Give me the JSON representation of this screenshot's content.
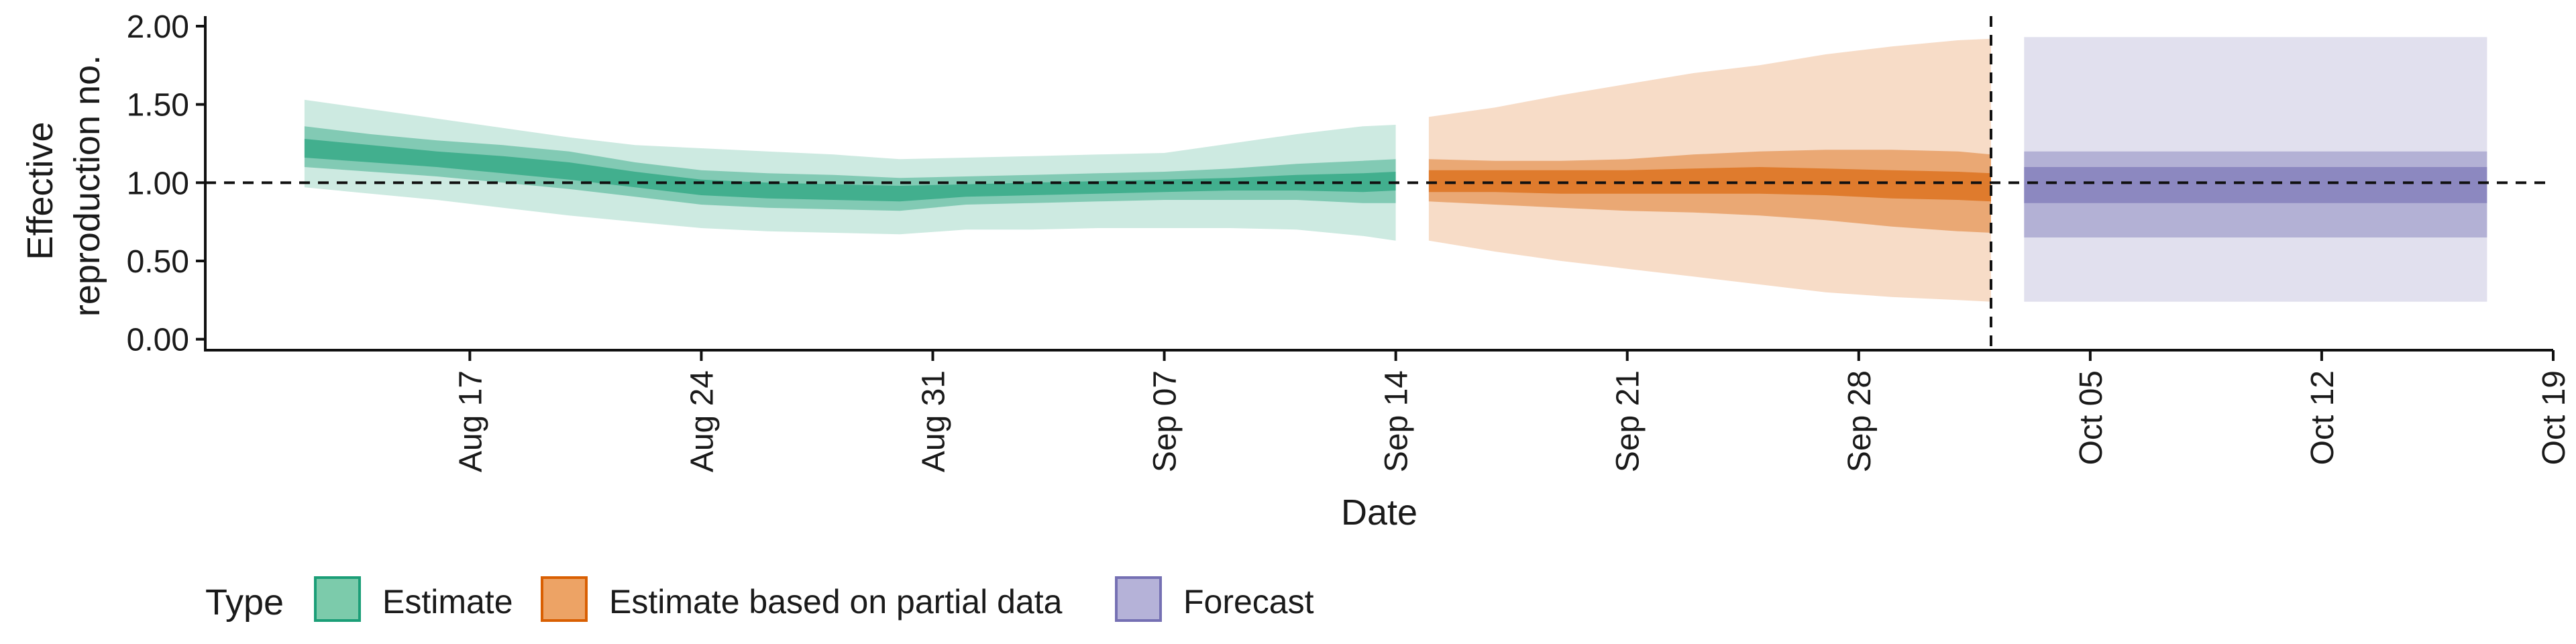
{
  "chart_data": {
    "type": "area",
    "xlabel": "Date",
    "ylabel_lines": [
      "Effective",
      "reproduction no."
    ],
    "ylim": [
      -0.07,
      2.03
    ],
    "xlim": [
      "2025-08-09",
      "2025-10-19"
    ],
    "yticks": [
      0.0,
      0.5,
      1.0,
      1.5,
      2.0
    ],
    "ytick_labels": [
      "0.00",
      "0.50",
      "1.00",
      "1.50",
      "2.00"
    ],
    "xticks": [
      "2025-08-17",
      "2025-08-24",
      "2025-08-31",
      "2025-09-07",
      "2025-09-14",
      "2025-09-21",
      "2025-09-28",
      "2025-10-05",
      "2025-10-12",
      "2025-10-19"
    ],
    "xtick_labels": [
      "Aug 17",
      "Aug 24",
      "Aug 31",
      "Sep 07",
      "Sep 14",
      "Sep 21",
      "Sep 28",
      "Oct 05",
      "Oct 12",
      "Oct 19"
    ],
    "reference_line_y": 1.0,
    "forecast_date_line": "2025-10-02",
    "grid": false,
    "legend": {
      "title": "Type",
      "position": "bottom-left",
      "items": [
        {
          "label": "Estimate",
          "fill": "#7ccbab",
          "stroke": "#1b9e77"
        },
        {
          "label": "Estimate based on partial data",
          "fill": "#eda365",
          "stroke": "#d95f02"
        },
        {
          "label": "Forecast",
          "fill": "#b5b2d8",
          "stroke": "#7570b3"
        }
      ]
    },
    "series": [
      {
        "type": "Estimate",
        "color": "#1b9e77",
        "dates": [
          "2025-08-12",
          "2025-08-14",
          "2025-08-16",
          "2025-08-18",
          "2025-08-20",
          "2025-08-22",
          "2025-08-24",
          "2025-08-26",
          "2025-08-28",
          "2025-08-30",
          "2025-09-01",
          "2025-09-03",
          "2025-09-05",
          "2025-09-07",
          "2025-09-09",
          "2025-09-11",
          "2025-09-13",
          "2025-09-14"
        ],
        "bands": [
          {
            "lower": [
              0.97,
              0.93,
              0.89,
              0.84,
              0.79,
              0.75,
              0.71,
              0.69,
              0.68,
              0.67,
              0.7,
              0.7,
              0.71,
              0.71,
              0.71,
              0.7,
              0.66,
              0.63
            ],
            "upper": [
              1.53,
              1.47,
              1.41,
              1.35,
              1.29,
              1.24,
              1.22,
              1.2,
              1.18,
              1.15,
              1.16,
              1.17,
              1.18,
              1.19,
              1.25,
              1.31,
              1.36,
              1.37
            ]
          },
          {
            "lower": [
              1.1,
              1.07,
              1.04,
              1.0,
              0.96,
              0.91,
              0.86,
              0.84,
              0.83,
              0.82,
              0.86,
              0.87,
              0.88,
              0.89,
              0.89,
              0.89,
              0.87,
              0.87
            ],
            "upper": [
              1.36,
              1.31,
              1.27,
              1.24,
              1.2,
              1.13,
              1.08,
              1.06,
              1.05,
              1.03,
              1.04,
              1.05,
              1.06,
              1.07,
              1.09,
              1.12,
              1.14,
              1.15
            ]
          },
          {
            "lower": [
              1.16,
              1.13,
              1.1,
              1.06,
              1.02,
              0.97,
              0.92,
              0.9,
              0.89,
              0.88,
              0.91,
              0.92,
              0.93,
              0.94,
              0.95,
              0.95,
              0.94,
              0.95
            ],
            "upper": [
              1.28,
              1.24,
              1.2,
              1.17,
              1.13,
              1.07,
              1.02,
              1.0,
              0.99,
              0.98,
              0.99,
              1.0,
              1.01,
              1.02,
              1.03,
              1.05,
              1.06,
              1.07
            ]
          }
        ]
      },
      {
        "type": "Estimate based on partial data",
        "color": "#d95f02",
        "dates": [
          "2025-09-15",
          "2025-09-17",
          "2025-09-19",
          "2025-09-21",
          "2025-09-23",
          "2025-09-25",
          "2025-09-27",
          "2025-09-29",
          "2025-10-01",
          "2025-10-02"
        ],
        "bands": [
          {
            "lower": [
              0.63,
              0.56,
              0.5,
              0.45,
              0.4,
              0.35,
              0.3,
              0.27,
              0.25,
              0.24
            ],
            "upper": [
              1.42,
              1.48,
              1.56,
              1.63,
              1.7,
              1.75,
              1.82,
              1.87,
              1.91,
              1.92
            ]
          },
          {
            "lower": [
              0.88,
              0.86,
              0.84,
              0.82,
              0.81,
              0.79,
              0.76,
              0.72,
              0.69,
              0.68
            ],
            "upper": [
              1.15,
              1.14,
              1.14,
              1.15,
              1.18,
              1.2,
              1.21,
              1.21,
              1.2,
              1.18
            ]
          },
          {
            "lower": [
              0.94,
              0.94,
              0.93,
              0.93,
              0.93,
              0.93,
              0.92,
              0.9,
              0.89,
              0.88
            ],
            "upper": [
              1.08,
              1.08,
              1.08,
              1.08,
              1.09,
              1.1,
              1.09,
              1.08,
              1.07,
              1.06
            ]
          }
        ]
      },
      {
        "type": "Forecast",
        "color": "#7570b3",
        "dates": [
          "2025-10-03",
          "2025-10-17"
        ],
        "bands": [
          {
            "lower": [
              0.24,
              0.24
            ],
            "upper": [
              1.93,
              1.93
            ]
          },
          {
            "lower": [
              0.65,
              0.65
            ],
            "upper": [
              1.2,
              1.2
            ]
          },
          {
            "lower": [
              0.87,
              0.87
            ],
            "upper": [
              1.1,
              1.1
            ]
          }
        ]
      }
    ],
    "band_opacities": [
      0.22,
      0.42,
      0.62
    ]
  }
}
